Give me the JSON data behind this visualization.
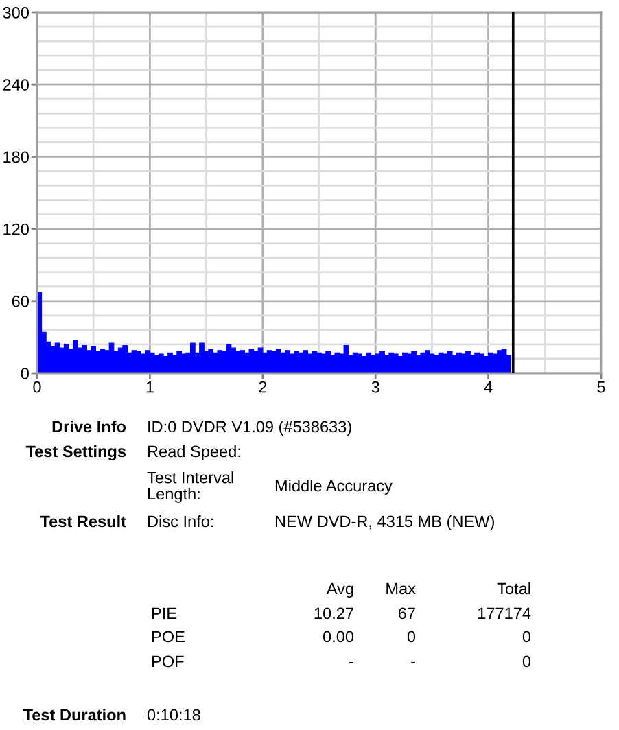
{
  "chart_data": {
    "type": "bar",
    "x": [
      0,
      0.04,
      0.08,
      0.12,
      0.16,
      0.2,
      0.24,
      0.28,
      0.32,
      0.36,
      0.4,
      0.44,
      0.48,
      0.52,
      0.56,
      0.6,
      0.64,
      0.68,
      0.72,
      0.76,
      0.8,
      0.84,
      0.88,
      0.92,
      0.96,
      1.0,
      1.04,
      1.08,
      1.12,
      1.16,
      1.2,
      1.24,
      1.28,
      1.32,
      1.36,
      1.4,
      1.44,
      1.48,
      1.52,
      1.56,
      1.6,
      1.64,
      1.68,
      1.72,
      1.76,
      1.8,
      1.84,
      1.88,
      1.92,
      1.96,
      2.0,
      2.04,
      2.08,
      2.12,
      2.16,
      2.2,
      2.24,
      2.28,
      2.32,
      2.36,
      2.4,
      2.44,
      2.48,
      2.52,
      2.56,
      2.6,
      2.64,
      2.68,
      2.72,
      2.76,
      2.8,
      2.84,
      2.88,
      2.92,
      2.96,
      3.0,
      3.04,
      3.08,
      3.12,
      3.16,
      3.2,
      3.24,
      3.28,
      3.32,
      3.36,
      3.4,
      3.44,
      3.48,
      3.52,
      3.56,
      3.6,
      3.64,
      3.68,
      3.72,
      3.76,
      3.8,
      3.84,
      3.88,
      3.92,
      3.96,
      4.0,
      4.04,
      4.08,
      4.12,
      4.16
    ],
    "series": [
      {
        "color": "#0000ff",
        "values": [
          67,
          34,
          26,
          22,
          25,
          21,
          24,
          20,
          27,
          21,
          23,
          19,
          22,
          18,
          20,
          19,
          25,
          18,
          21,
          23,
          17,
          19,
          18,
          16,
          19,
          17,
          15,
          16,
          14,
          17,
          15,
          18,
          16,
          17,
          25,
          17,
          25,
          18,
          20,
          17,
          19,
          18,
          24,
          21,
          18,
          19,
          17,
          20,
          18,
          21,
          17,
          19,
          18,
          20,
          17,
          19,
          16,
          18,
          17,
          19,
          16,
          18,
          17,
          16,
          18,
          15,
          17,
          16,
          23,
          15,
          17,
          16,
          14,
          17,
          15,
          16,
          18,
          15,
          17,
          16,
          14,
          17,
          16,
          18,
          15,
          17,
          19,
          16,
          15,
          17,
          16,
          18,
          15,
          17,
          16,
          18,
          15,
          17,
          16,
          14,
          17,
          16,
          19,
          20,
          15
        ]
      }
    ],
    "xlim": [
      0,
      5
    ],
    "xticks": [
      0,
      {
        "value": 0.5,
        "label": null
      },
      1,
      {
        "value": 1.5,
        "label": null
      },
      2,
      {
        "value": 2.5,
        "label": null
      },
      3,
      {
        "value": 3.5,
        "label": null
      },
      4,
      {
        "value": 4.5,
        "label": null
      },
      5
    ],
    "ylim": [
      0,
      300
    ],
    "yticks": [
      0,
      {
        "value": 12,
        "label": null
      },
      {
        "value": 24,
        "label": null
      },
      {
        "value": 36,
        "label": null
      },
      {
        "value": 48,
        "label": null
      },
      60,
      {
        "value": 72,
        "label": null
      },
      {
        "value": 84,
        "label": null
      },
      {
        "value": 96,
        "label": null
      },
      {
        "value": 108,
        "label": null
      },
      120,
      {
        "value": 132,
        "label": null
      },
      {
        "value": 144,
        "label": null
      },
      {
        "value": 156,
        "label": null
      },
      {
        "value": 168,
        "label": null
      },
      180,
      {
        "value": 192,
        "label": null
      },
      {
        "value": 204,
        "label": null
      },
      {
        "value": 216,
        "label": null
      },
      {
        "value": 228,
        "label": null
      },
      240,
      {
        "value": 252,
        "label": null
      },
      {
        "value": 264,
        "label": null
      },
      {
        "value": 276,
        "label": null
      },
      {
        "value": 288,
        "label": null
      },
      300
    ],
    "grid": true,
    "ref_lines": [
      {
        "axis": "x",
        "value": 4.22,
        "color": "#000000"
      }
    ],
    "annotations": [
      "Drive Info",
      "ID:0 DVDR V1.09 (#538633)",
      "Test Settings",
      "Read Speed:",
      "Test Interval\nLength:",
      "Middle Accuracy",
      "Test Result",
      "Disc Info:",
      "NEW DVD-R, 4315 MB (NEW)",
      "Avg",
      "Max",
      "Total",
      "PIE",
      "10.27",
      "67",
      "177174",
      "POE",
      "0.00",
      "0",
      "0",
      "POF",
      "-",
      "-",
      "0",
      "Test Duration",
      "0:10:18"
    ]
  }
}
